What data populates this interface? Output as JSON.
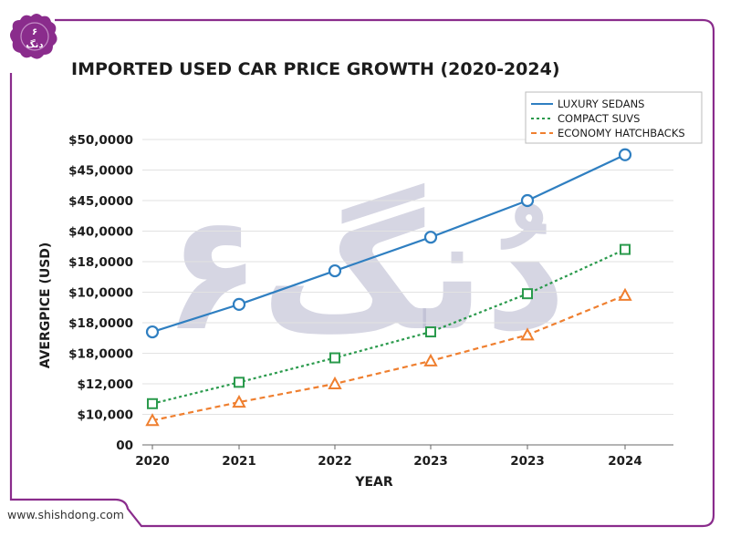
{
  "brand": {
    "badge_line1": "۶",
    "badge_line2": "دنگ",
    "watermark": "۶دُنگ",
    "website": "www.shishdong.com",
    "accent_color": "#8a2c8c"
  },
  "chart_data": {
    "type": "line",
    "title": "IMPORTED USED CAR PRICE GROWTH (2020-2024)",
    "xlabel": "YEAR",
    "ylabel": "AVERGPICE (USD)",
    "categories": [
      "2020",
      "2021",
      "2022",
      "2023",
      "2023",
      "2024"
    ],
    "y_tick_labels": [
      "00",
      "$10,000",
      "$12,000",
      "$18,0000",
      "$18,0000",
      "$10,0000",
      "$18,0000",
      "$40,0000",
      "$45,0000",
      "$45,0000",
      "$50,0000"
    ],
    "ylim": [
      0,
      10
    ],
    "grid": true,
    "legend_position": "top-right",
    "series": [
      {
        "name": "LUXURY SEDANS",
        "color": "#2f7fc1",
        "style": "solid",
        "marker": "circle",
        "values": [
          3.7,
          4.6,
          5.7,
          6.8,
          8.0,
          9.5
        ]
      },
      {
        "name": "COMPACT SUVS",
        "color": "#2a9a4c",
        "style": "dotted",
        "marker": "square",
        "values": [
          1.35,
          2.05,
          2.85,
          3.7,
          4.95,
          6.4
        ]
      },
      {
        "name": "ECONOMY HATCHBACKS",
        "color": "#ef7f2f",
        "style": "dashed",
        "marker": "triangle",
        "values": [
          0.8,
          1.4,
          2.0,
          2.75,
          3.6,
          4.9
        ]
      }
    ]
  }
}
